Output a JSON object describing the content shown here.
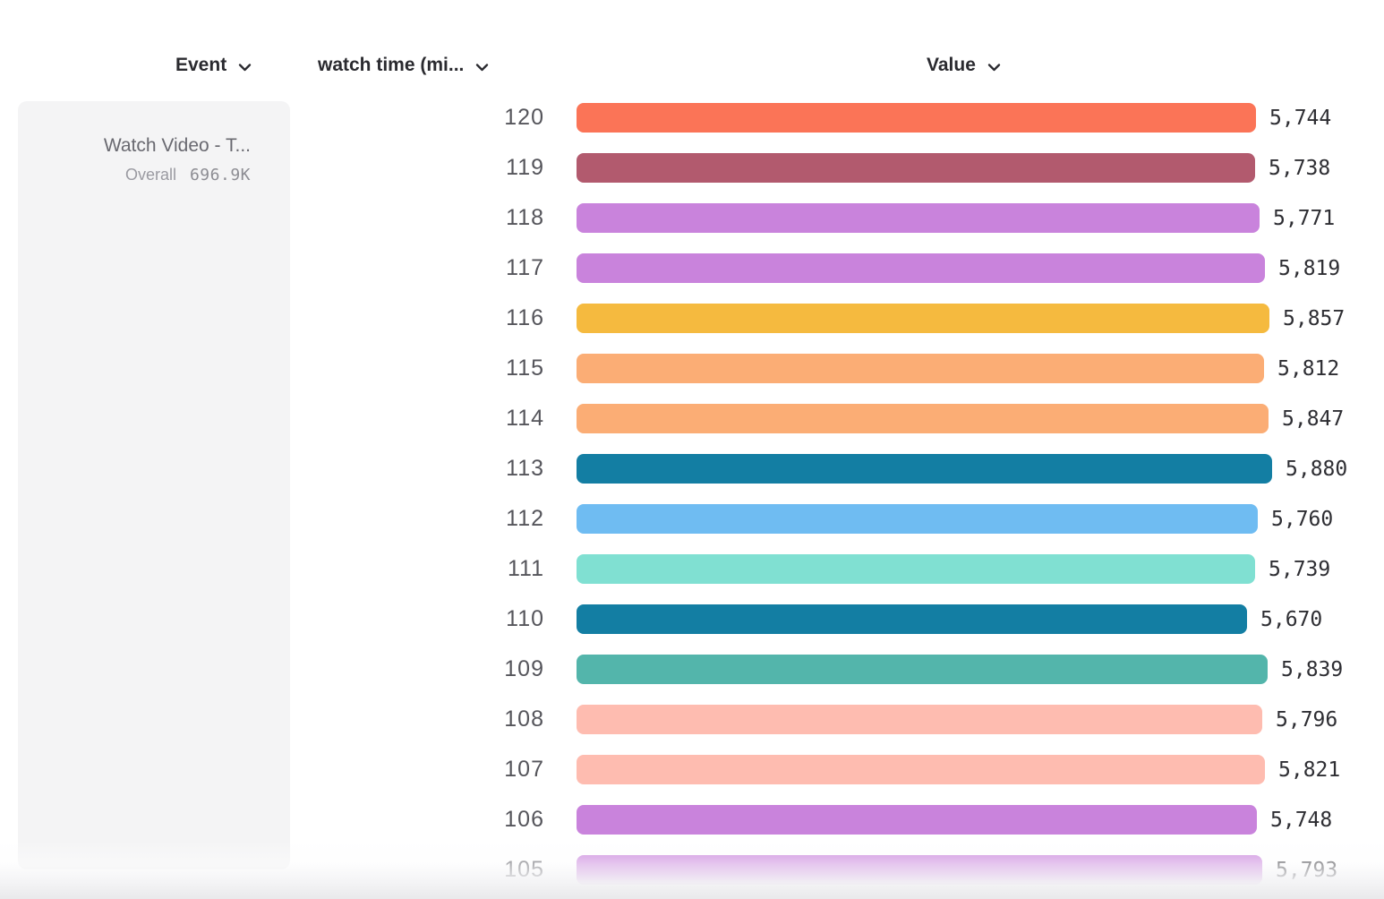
{
  "header": {
    "columns": [
      {
        "id": "event",
        "label": "Event"
      },
      {
        "id": "watch_time",
        "label": "watch time (mi..."
      },
      {
        "id": "value",
        "label": "Value"
      }
    ]
  },
  "event_card": {
    "title": "Watch Video - T...",
    "overall_label": "Overall",
    "overall_value": "696.9K"
  },
  "chart_data": {
    "type": "bar",
    "orientation": "horizontal",
    "title": "",
    "xlabel": "Value",
    "ylabel": "watch time (minutes)",
    "xlim": [
      0,
      5880
    ],
    "grid": false,
    "categories": [
      "120",
      "119",
      "118",
      "117",
      "116",
      "115",
      "114",
      "113",
      "112",
      "111",
      "110",
      "109",
      "108",
      "107",
      "106",
      "105"
    ],
    "values": [
      5744,
      5738,
      5771,
      5819,
      5857,
      5812,
      5847,
      5880,
      5760,
      5739,
      5670,
      5839,
      5796,
      5821,
      5748,
      5793
    ],
    "value_labels": [
      "5,744",
      "5,738",
      "5,771",
      "5,819",
      "5,857",
      "5,812",
      "5,847",
      "5,880",
      "5,760",
      "5,739",
      "5,670",
      "5,839",
      "5,796",
      "5,821",
      "5,748",
      "5,793"
    ],
    "colors": [
      "#FB7457",
      "#B25A6E",
      "#C983DC",
      "#C983DC",
      "#F5BA3F",
      "#FBAD75",
      "#FBAD75",
      "#137EA3",
      "#6FBCF2",
      "#80E0D2",
      "#137EA3",
      "#53B5AB",
      "#FEBCB0",
      "#FEBCB0",
      "#C983DC",
      "#C983DC"
    ],
    "series_name": "Watch Video - T..."
  },
  "colors": {
    "page_bg": "#FFFFFF",
    "header_text": "#2A2A2F",
    "row_label": "#55555B",
    "value_text": "#2E2E33",
    "card_bg": "#F4F4F5",
    "card_title": "#696970",
    "overall_label": "#9A9AA1",
    "overall_value": "#8D8D93",
    "fade_to": "#E9E9EB"
  }
}
